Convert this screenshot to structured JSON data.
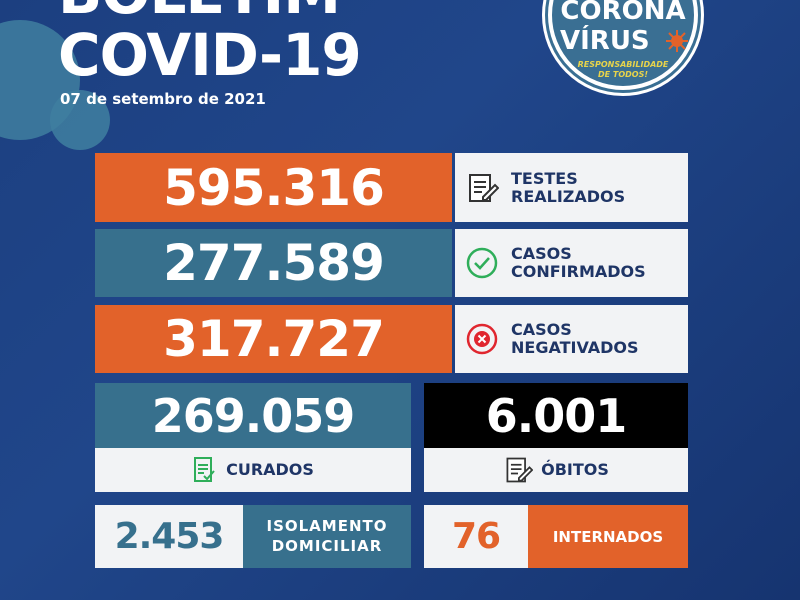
{
  "header": {
    "title_line1": "BOLETIM",
    "title_line2": "COVID-19",
    "date": "07 de setembro de 2021"
  },
  "badge": {
    "line1": "CORONA",
    "line2": "VÍRUS",
    "slogan_line1": "RESPONSABILIDADE",
    "slogan_line2": "DE TODOS!"
  },
  "stats": {
    "testes": {
      "value": "595.316",
      "label_line1": "TESTES",
      "label_line2": "REALIZADOS",
      "icon": "document-edit-icon"
    },
    "confirmados": {
      "value": "277.589",
      "label_line1": "CASOS",
      "label_line2": "CONFIRMADOS",
      "icon": "check-circle-icon"
    },
    "negativados": {
      "value": "317.727",
      "label_line1": "CASOS",
      "label_line2": "NEGATIVADOS",
      "icon": "x-circle-icon"
    },
    "curados": {
      "value": "269.059",
      "label": "CURADOS",
      "icon": "document-check-icon"
    },
    "obitos": {
      "value": "6.001",
      "label": "ÓBITOS",
      "icon": "document-edit-icon"
    },
    "isolamento": {
      "value": "2.453",
      "label_line1": "ISOLAMENTO",
      "label_line2": "DOMICILIAR"
    },
    "internados": {
      "value": "76",
      "label": "INTERNADOS"
    }
  },
  "colors": {
    "orange": "#e2622a",
    "teal": "#37708d",
    "navy": "#1f3566",
    "background": "#1c3f80",
    "green": "#2fae5a",
    "red": "#e0262f"
  }
}
